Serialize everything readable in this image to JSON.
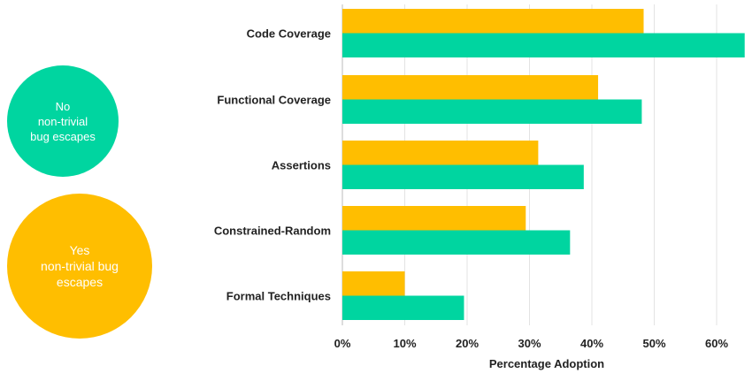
{
  "chart_data": {
    "type": "bar",
    "orientation": "horizontal",
    "categories": [
      "Code Coverage",
      "Functional  Coverage",
      "Assertions",
      "Constrained-Random",
      "Formal Techniques"
    ],
    "series": [
      {
        "name": "Yes\nnon-trivial bug\nescapes",
        "color": "#FFBE00",
        "values": [
          48.3,
          41.0,
          31.4,
          29.4,
          10.0
        ]
      },
      {
        "name": "No\nnon-trivial\nbug escapes",
        "color": "#00D5A0",
        "values": [
          64.5,
          48.0,
          38.7,
          36.5,
          19.5
        ]
      }
    ],
    "xlabel": "Percentage Adoption",
    "xlim": [
      0,
      65
    ],
    "xticks": [
      0,
      10,
      20,
      30,
      40,
      50,
      60
    ],
    "tick_labels": [
      "0%",
      "10%",
      "20%",
      "30%",
      "40%",
      "50%",
      "60%"
    ],
    "grid": "vertical",
    "legend": "left"
  }
}
